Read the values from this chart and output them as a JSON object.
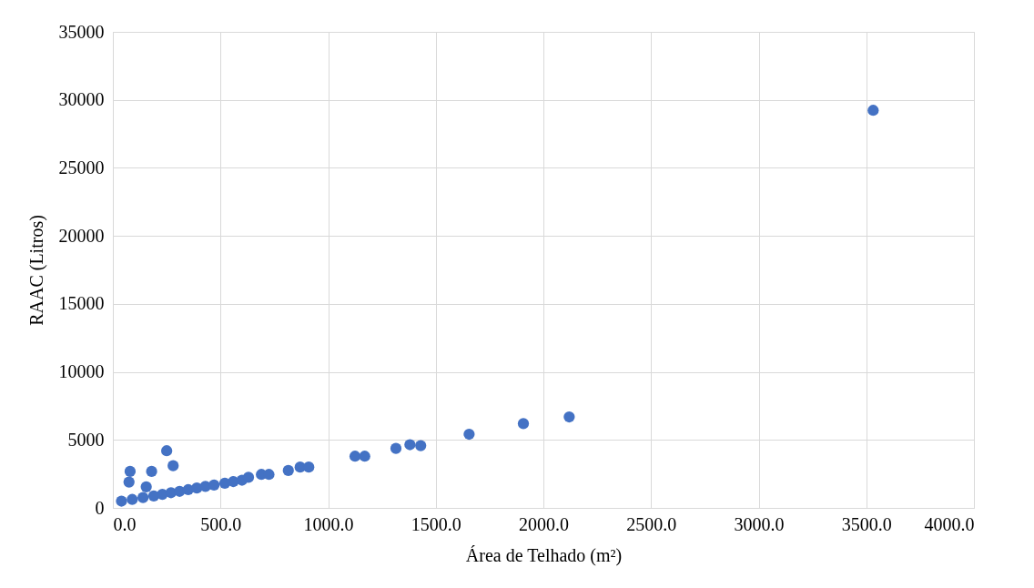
{
  "chart_data": {
    "type": "scatter",
    "xlabel": "Área de Telhado (m²)",
    "ylabel": "RAAC (Litros)",
    "x": [
      40,
      90,
      140,
      190,
      230,
      270,
      310,
      350,
      390,
      430,
      470,
      520,
      560,
      600,
      630,
      690,
      725,
      815,
      870,
      910,
      1125,
      1170,
      1315,
      1380,
      1430,
      1655,
      1907,
      2120,
      3532,
      75,
      80,
      180,
      250,
      280,
      155
    ],
    "series": [
      {
        "color": "#4472c4",
        "values": [
          500,
          620,
          760,
          880,
          1000,
          1120,
          1220,
          1340,
          1460,
          1580,
          1680,
          1820,
          1940,
          2040,
          2250,
          2460,
          2460,
          2750,
          3000,
          3000,
          3800,
          3800,
          4370,
          4650,
          4580,
          5420,
          6200,
          6690,
          29230,
          1900,
          2680,
          2680,
          4200,
          3100,
          1550
        ]
      }
    ],
    "xlim": [
      0,
      4000
    ],
    "ylim": [
      0,
      35000
    ],
    "xticks": [
      {
        "value": 0,
        "label": "0.0"
      },
      {
        "value": 500,
        "label": "500.0"
      },
      {
        "value": 1000,
        "label": "1000.0"
      },
      {
        "value": 1500,
        "label": "1500.0"
      },
      {
        "value": 2000,
        "label": "2000.0"
      },
      {
        "value": 2500,
        "label": "2500.0"
      },
      {
        "value": 3000,
        "label": "3000.0"
      },
      {
        "value": 3500,
        "label": "3500.0"
      },
      {
        "value": 4000,
        "label": "4000.0"
      }
    ],
    "yticks": [
      0,
      5000,
      10000,
      15000,
      20000,
      25000,
      30000,
      35000
    ],
    "grid": true,
    "marker": "circle"
  }
}
